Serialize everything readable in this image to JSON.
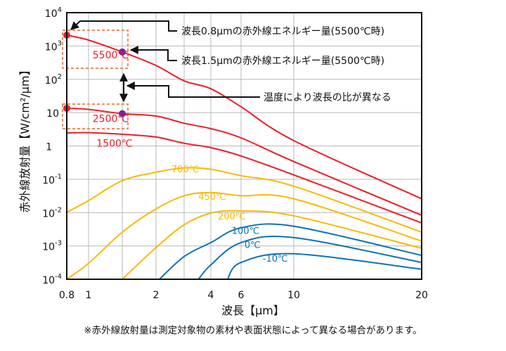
{
  "chart_data": {
    "type": "line",
    "title": "",
    "xlabel": "波長【μm】",
    "ylabel": "赤外線放射量【W/cm²/μm】",
    "xscale": "log",
    "yscale": "log",
    "xlim": [
      0.8,
      20
    ],
    "ylim": [
      0.0001,
      10000
    ],
    "grid": true,
    "x_ticks": [
      {
        "value": 0.8,
        "label": "0.8"
      },
      {
        "value": 1,
        "label": "1"
      },
      {
        "value": 2,
        "label": "2"
      },
      {
        "value": 4,
        "label": "4"
      },
      {
        "value": 6,
        "label": "6"
      },
      {
        "value": 10,
        "label": "10"
      },
      {
        "value": 20,
        "label": "20"
      }
    ],
    "x_gridlines": [
      1,
      1.5,
      2,
      3,
      4,
      6,
      10
    ],
    "y_ticks": [
      {
        "value": 10000,
        "base": "10",
        "exp": "4"
      },
      {
        "value": 1000,
        "base": "10",
        "exp": "3"
      },
      {
        "value": 100,
        "base": "10",
        "exp": "2"
      },
      {
        "value": 10,
        "base": "10",
        "exp": ""
      },
      {
        "value": 1,
        "base": "1",
        "exp": ""
      },
      {
        "value": 0.1,
        "base": "10",
        "exp": "-1"
      },
      {
        "value": 0.01,
        "base": "10",
        "exp": "-2"
      },
      {
        "value": 0.001,
        "base": "10",
        "exp": "-3"
      },
      {
        "value": 0.0001,
        "base": "10",
        "exp": "-4"
      }
    ],
    "series": [
      {
        "name": "5500℃",
        "color": "#ee1c25",
        "label_at": [
          1.05,
          420
        ],
        "x": [
          0.8,
          1.0,
          1.5,
          2,
          3,
          4,
          6,
          10,
          20
        ],
        "y": [
          2110,
          1500,
          660,
          260,
          90,
          52,
          15,
          1.45,
          0.026
        ]
      },
      {
        "name": "2500℃",
        "color": "#ee1c25",
        "label_at": [
          1.05,
          5.2
        ],
        "x": [
          0.8,
          1.0,
          1.5,
          2,
          3,
          4,
          6,
          10,
          20
        ],
        "y": [
          13.5,
          12.5,
          9.3,
          7.9,
          4.8,
          3.3,
          1.75,
          0.34,
          0.0083
        ]
      },
      {
        "name": "1500℃",
        "color": "#ee1c25",
        "label_at": [
          1.1,
          0.95
        ],
        "x": [
          0.8,
          1.0,
          1.5,
          2,
          3,
          4,
          6,
          10,
          20
        ],
        "y": [
          2.46,
          2.5,
          2.24,
          1.85,
          1.2,
          0.89,
          0.5,
          0.135,
          0.0049
        ]
      },
      {
        "name": "700℃",
        "color": "#fbb900",
        "label_at": [
          2.5,
          0.16
        ],
        "x": [
          0.8,
          1.0,
          1.5,
          2,
          3,
          4,
          6,
          10,
          20
        ],
        "y": [
          0.0102,
          0.023,
          0.091,
          0.162,
          0.22,
          0.2,
          0.128,
          0.062,
          0.0026
        ]
      },
      {
        "name": "450℃",
        "color": "#fbb900",
        "label_at": [
          3.5,
          0.024
        ],
        "x": [
          0.8,
          1.0,
          1.5,
          2,
          3,
          4,
          6,
          10,
          20
        ],
        "y": [
          0.0001,
          0.0003,
          0.0026,
          0.0129,
          0.032,
          0.04,
          0.032,
          0.026,
          0.0014
        ]
      },
      {
        "name": "200℃",
        "color": "#fbb900",
        "label_at": [
          4.4,
          0.0063
        ],
        "x": [
          1.5,
          2,
          3,
          4,
          6,
          10,
          20
        ],
        "y": [
          0.0001,
          0.00089,
          0.0043,
          0.0097,
          0.0112,
          0.008,
          0.00085
        ]
      },
      {
        "name": "100℃",
        "color": "#0b72b9",
        "label_at": [
          5.3,
          0.0023
        ],
        "x": [
          2.1,
          3,
          4,
          6,
          10,
          20
        ],
        "y": [
          0.0001,
          0.00048,
          0.00126,
          0.0035,
          0.0039,
          0.00052
        ]
      },
      {
        "name": "0℃",
        "color": "#0b72b9",
        "label_at": [
          6.2,
          0.00087
        ],
        "x": [
          3.5,
          4,
          6,
          10,
          20
        ],
        "y": [
          0.0001,
          0.00027,
          0.00126,
          0.00178,
          0.00032
        ]
      },
      {
        "name": "-10℃",
        "color": "#0b72b9",
        "label_at": [
          7.4,
          0.00034
        ],
        "x": [
          5,
          6,
          10,
          20
        ],
        "y": [
          0.0001,
          0.00032,
          0.00058,
          0.0002
        ]
      }
    ],
    "markers": [
      {
        "name": "5500-0.8",
        "x": 0.8,
        "y": 2110,
        "color": "#ee1c25"
      },
      {
        "name": "5500-1.5",
        "x": 1.5,
        "y": 660,
        "color": "#7a1fa2"
      },
      {
        "name": "2500-0.8",
        "x": 0.8,
        "y": 13.5,
        "color": "#ee1c25"
      },
      {
        "name": "2500-1.5",
        "x": 1.5,
        "y": 9.3,
        "color": "#7a1fa2"
      }
    ],
    "annotations": [
      {
        "text": "波長0.8μmの赤外線エネルギー量(5500℃時)",
        "target": "5500℃ at 0.8μm"
      },
      {
        "text": "波長1.5μmの赤外線エネルギー量(5500℃時)",
        "target": "5500℃ at 1.5μm"
      },
      {
        "text": "温度により波長の比が異なる",
        "target": "ratio between 5500℃ and 2500℃ at 1.5μm"
      }
    ],
    "highlight_color": "#f08a5d"
  },
  "footnote": "※赤外線放射量は測定対象物の素材や表面状態によって異なる場合があります。"
}
